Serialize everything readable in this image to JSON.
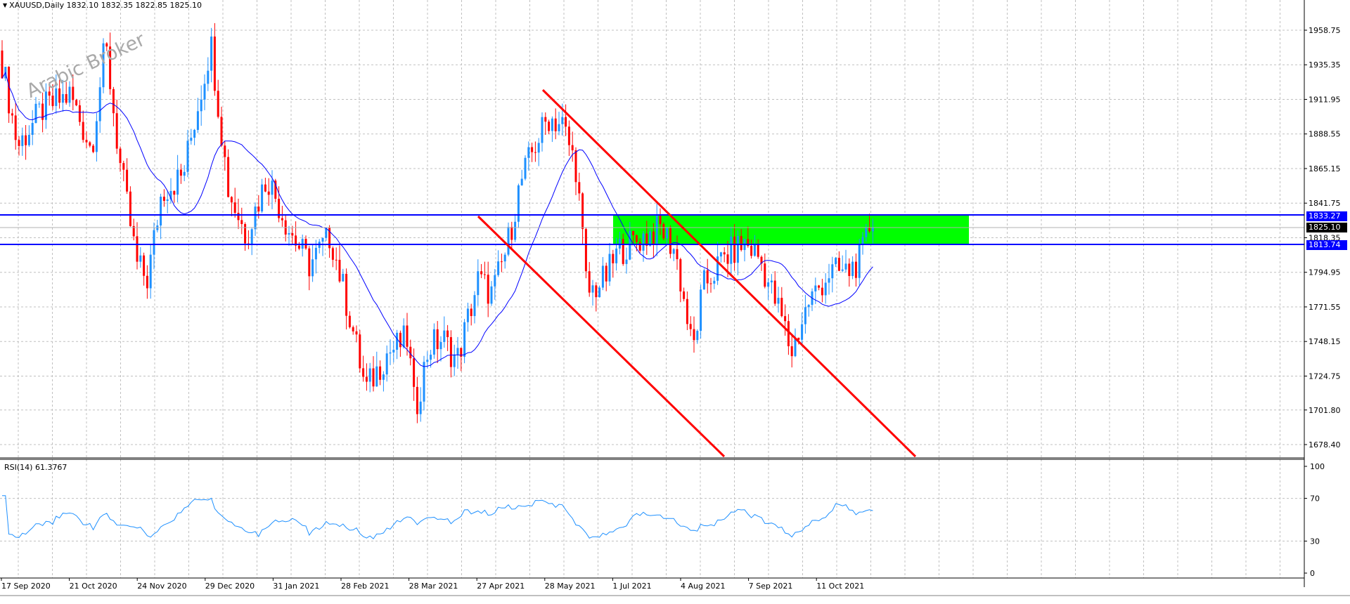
{
  "header": {
    "symbol_line": "XAUUSD,Daily  1832.10 1832.35 1822.85 1825.10",
    "dropdown_icon": "triangle-down-icon"
  },
  "watermark": "Arabic Broker",
  "price_axis": {
    "ticks": [
      "1958.75",
      "1935.35",
      "1911.95",
      "1888.55",
      "1865.15",
      "1841.75",
      "1818.35",
      "1794.95",
      "1771.55",
      "1748.15",
      "1724.75",
      "1701.80",
      "1678.40"
    ]
  },
  "levels": {
    "upper_line": "1833.27",
    "current_price": "1825.10",
    "lower_line": "1813.74"
  },
  "time_axis": {
    "labels": [
      "17 Sep 2020",
      "21 Oct 2020",
      "24 Nov 2020",
      "29 Dec 2020",
      "31 Jan 2021",
      "28 Feb 2021",
      "28 Mar 2021",
      "27 Apr 2021",
      "28 May 2021",
      "1 Jul 2021",
      "4 Aug 2021",
      "7 Sep 2021",
      "11 Oct 2021"
    ]
  },
  "rsi": {
    "header": "RSI(14) 61.3767",
    "ticks": [
      "100",
      "70",
      "30",
      "0"
    ]
  },
  "colors": {
    "bull_candle": "#1e90ff",
    "bear_candle": "#ff0000",
    "moving_average": "#0000ff",
    "trendline": "#ff0000",
    "level_line": "#0000ff",
    "zone": "#00ff00",
    "rsi_line": "#1e90ff",
    "grid": "#c0c0c0"
  }
}
